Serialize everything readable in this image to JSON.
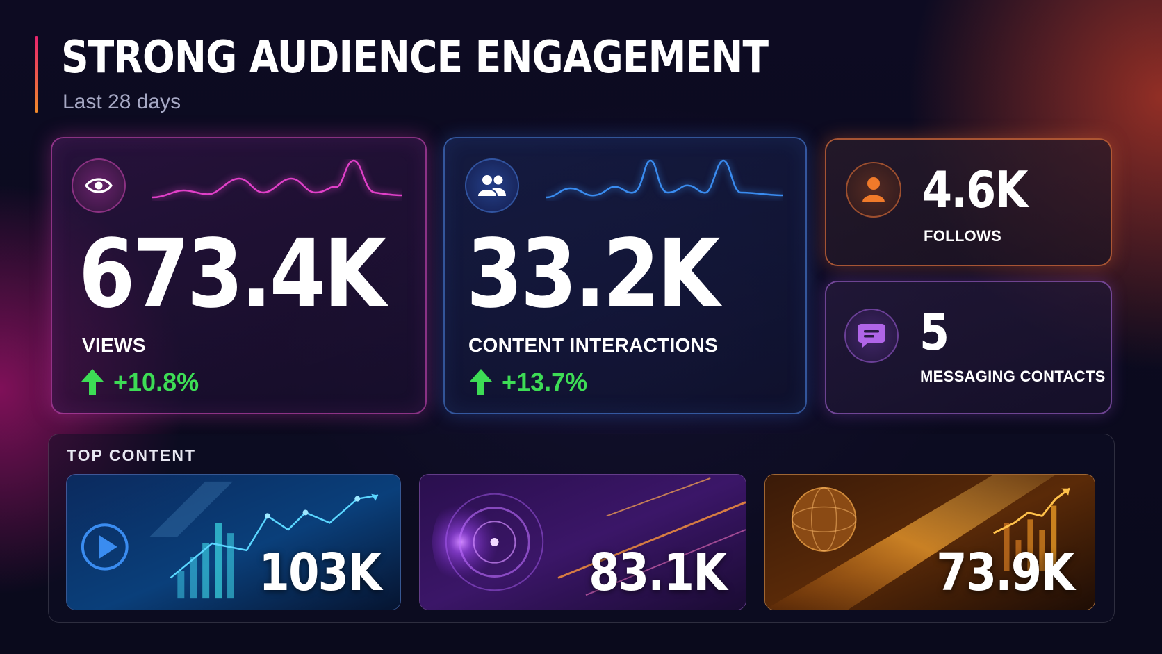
{
  "header": {
    "title": "STRONG AUDIENCE ENGAGEMENT",
    "subtitle": "Last 28 days"
  },
  "metrics": {
    "views": {
      "value": "673.4K",
      "label": "VIEWS",
      "change": "+10.8%",
      "icon": "eye-icon",
      "accent": "#e040c8"
    },
    "interactions": {
      "value": "33.2K",
      "label": "CONTENT INTERACTIONS",
      "change": "+13.7%",
      "icon": "users-icon",
      "accent": "#3a8cf0"
    },
    "follows": {
      "value": "4.6K",
      "label": "FOLLOWS",
      "icon": "user-icon",
      "accent": "#f07a2a"
    },
    "messaging": {
      "value": "5",
      "label": "MESSAGING CONTACTS",
      "icon": "chat-icon",
      "accent": "#b065e8"
    }
  },
  "top_content": {
    "title": "TOP CONTENT",
    "items": [
      {
        "value": "103K",
        "accent": "#3a8cf0"
      },
      {
        "value": "83.1K",
        "accent": "#a855f7"
      },
      {
        "value": "73.9K",
        "accent": "#f59e0b"
      }
    ]
  },
  "colors": {
    "positive": "#3ddc55",
    "background": "#0b0a1e"
  }
}
